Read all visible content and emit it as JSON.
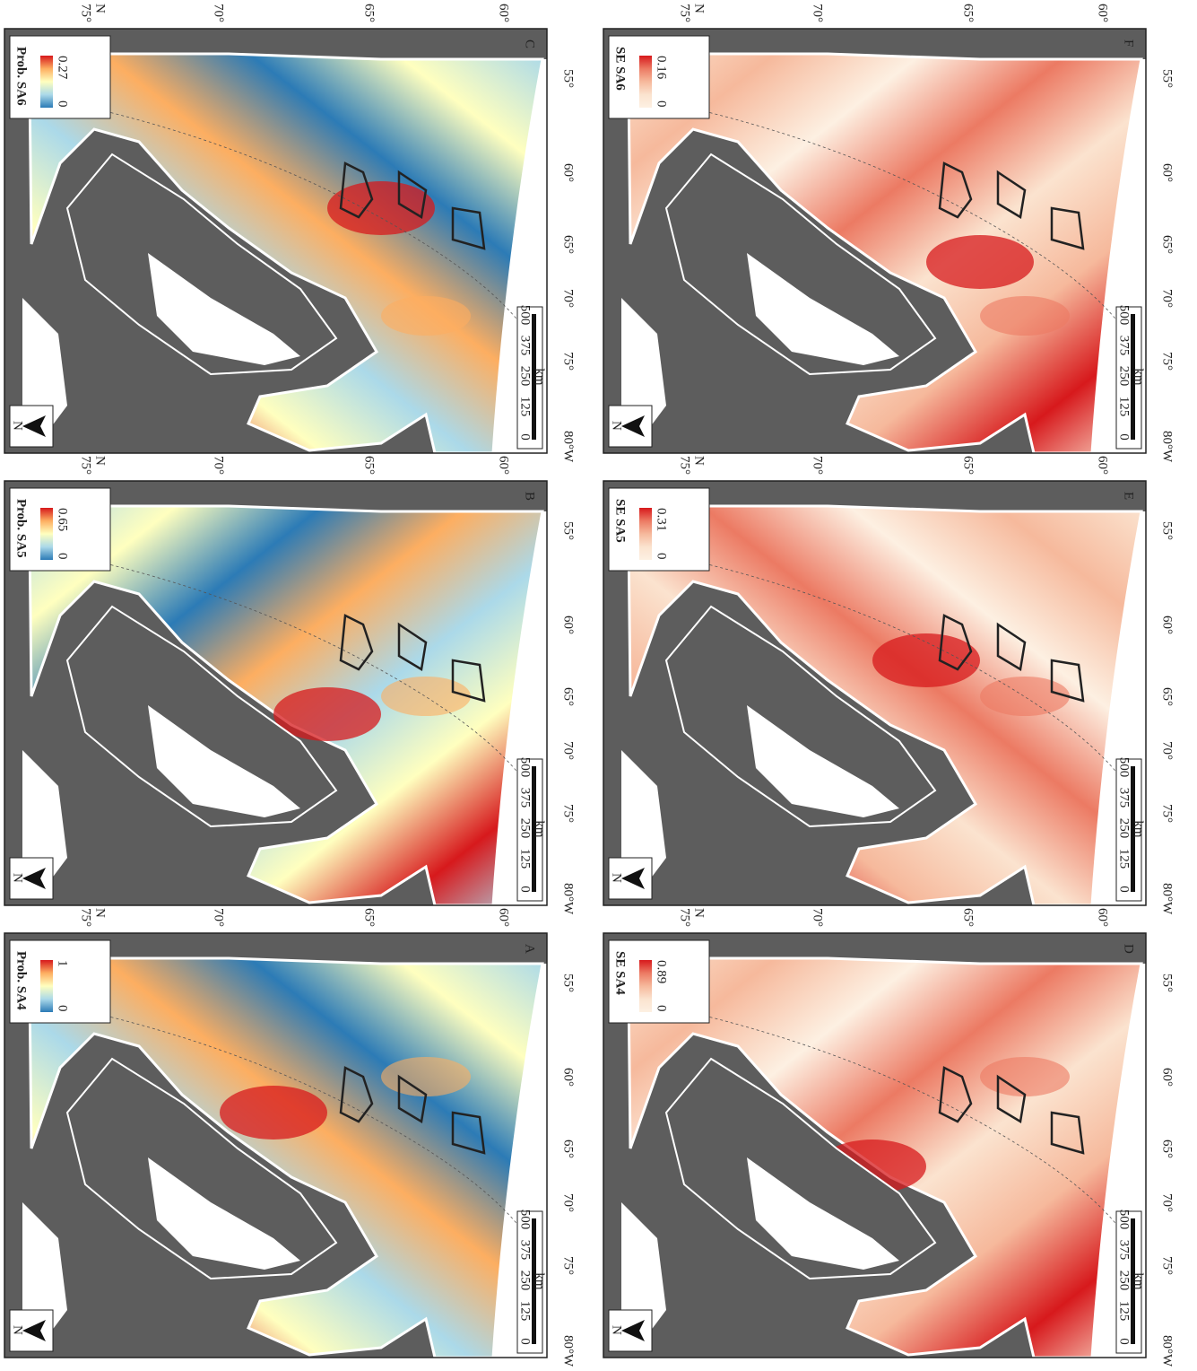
{
  "panels": [
    {
      "letter": "A",
      "legend_title": "Prob. SA4",
      "legend_max": 1,
      "legend_min": 0,
      "colormap": [
        "#d7191c",
        "#fdae61",
        "#ffffbf",
        "#abd9e9",
        "#2c7bb6"
      ]
    },
    {
      "letter": "B",
      "legend_title": "Prob. SA5",
      "legend_max": 0.65,
      "legend_min": 0,
      "colormap": [
        "#d7191c",
        "#fdae61",
        "#ffffbf",
        "#abd9e9",
        "#2c7bb6"
      ]
    },
    {
      "letter": "C",
      "legend_title": "Prob. SA6",
      "legend_max": 0.27,
      "legend_min": 0,
      "colormap": [
        "#d7191c",
        "#fdae61",
        "#ffffbf",
        "#abd9e9",
        "#2c7bb6"
      ]
    },
    {
      "letter": "D",
      "legend_title": "SE SA4",
      "legend_max": 0.89,
      "legend_min": 0,
      "colormap": [
        "#d7191c",
        "#ec7a63",
        "#f6b99c",
        "#fbe3cf",
        "#fdf0e2"
      ]
    },
    {
      "letter": "E",
      "legend_title": "SE SA5",
      "legend_max": 0.31,
      "legend_min": 0,
      "colormap": [
        "#d7191c",
        "#ec7a63",
        "#f6b99c",
        "#fbe3cf",
        "#fdf0e2"
      ]
    },
    {
      "letter": "F",
      "legend_title": "SE SA6",
      "legend_max": 0.16,
      "legend_min": 0,
      "colormap": [
        "#d7191c",
        "#ec7a63",
        "#f6b99c",
        "#fbe3cf",
        "#fdf0e2"
      ]
    }
  ],
  "latitude_labels": [
    "75°",
    "N",
    "70°",
    "65°",
    "60°"
  ],
  "longitude_labels": [
    "55°",
    "60°",
    "65°",
    "70°",
    "75°",
    "80°W"
  ],
  "scale_labels": [
    "0",
    "125",
    "250",
    "375",
    "500",
    "km"
  ],
  "north_label": "N"
}
